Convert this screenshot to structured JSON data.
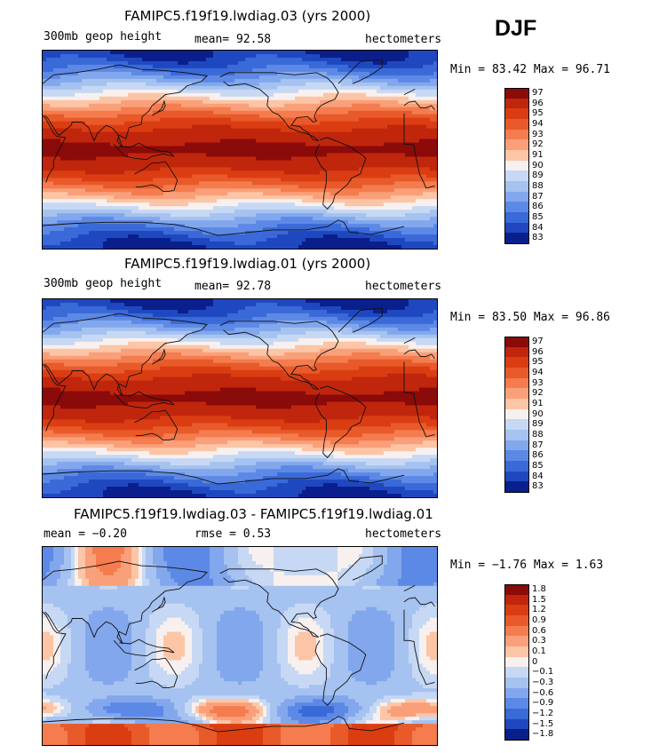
{
  "season": "DJF",
  "panels": [
    {
      "title": "FAMIPC5.f19f19.lwdiag.03 (yrs 2000)",
      "left_label": "300mb geop height",
      "center_label": "mean=  92.58",
      "units": "hectometers",
      "minmax": "Min =  83.42 Max =  96.71",
      "levels": [
        "97",
        "96",
        "95",
        "94",
        "93",
        "92",
        "91",
        "90",
        "89",
        "88",
        "87",
        "86",
        "85",
        "84",
        "83"
      ],
      "colors": [
        "#8b0a0a",
        "#c0260c",
        "#db3d12",
        "#e85a2a",
        "#f47c4e",
        "#f9a07a",
        "#fcc5a6",
        "#f7f0ef",
        "#c6d8f3",
        "#a5c2f0",
        "#82a7ec",
        "#5d89e6",
        "#3a69d8",
        "#1f48c0",
        "#0a1f8c"
      ],
      "kind": "full"
    },
    {
      "title": "FAMIPC5.f19f19.lwdiag.01 (yrs 2000)",
      "left_label": "300mb geop height",
      "center_label": "mean=  92.78",
      "units": "hectometers",
      "minmax": "Min =  83.50 Max =  96.86",
      "levels": [
        "97",
        "96",
        "95",
        "94",
        "93",
        "92",
        "91",
        "90",
        "89",
        "88",
        "87",
        "86",
        "85",
        "84",
        "83"
      ],
      "colors": [
        "#8b0a0a",
        "#c0260c",
        "#db3d12",
        "#e85a2a",
        "#f47c4e",
        "#f9a07a",
        "#fcc5a6",
        "#f7f0ef",
        "#c6d8f3",
        "#a5c2f0",
        "#82a7ec",
        "#5d89e6",
        "#3a69d8",
        "#1f48c0",
        "#0a1f8c"
      ],
      "kind": "full"
    },
    {
      "title": "FAMIPC5.f19f19.lwdiag.03 - FAMIPC5.f19f19.lwdiag.01",
      "left_label": "mean =   −0.20",
      "center_label": "rmse =    0.53",
      "units": "hectometers",
      "minmax": "Min =  −1.76 Max =   1.63",
      "levels": [
        "1.8",
        "1.5",
        "1.2",
        "0.9",
        "0.6",
        "0.3",
        "0.1",
        "0",
        "−0.1",
        "−0.3",
        "−0.6",
        "−0.9",
        "−1.2",
        "−1.5",
        "−1.8"
      ],
      "colors": [
        "#8b0a0a",
        "#c0260c",
        "#db3d12",
        "#e85a2a",
        "#f47c4e",
        "#f9a07a",
        "#fcc5a6",
        "#f7f0ef",
        "#c6d8f3",
        "#a5c2f0",
        "#82a7ec",
        "#5d89e6",
        "#3a69d8",
        "#1f48c0",
        "#0a1f8c"
      ],
      "kind": "diff"
    }
  ]
}
